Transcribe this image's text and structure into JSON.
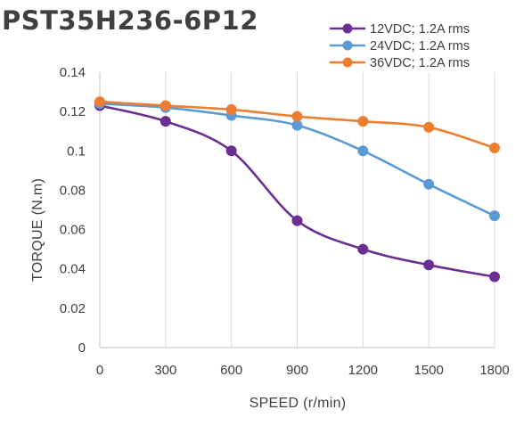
{
  "chart_data": {
    "type": "line",
    "title": "PST35H236-6P12",
    "xlabel": "SPEED (r/min)",
    "ylabel": "TORQUE (N.m)",
    "x": [
      0,
      300,
      600,
      900,
      1200,
      1500,
      1800
    ],
    "xlim": [
      0,
      1800
    ],
    "ylim": [
      0,
      0.14
    ],
    "xticks": [
      "0",
      "300",
      "600",
      "900",
      "1200",
      "1500",
      "1800"
    ],
    "yticks": [
      "0",
      "0.02",
      "0.04",
      "0.06",
      "0.08",
      "0.1",
      "0.12",
      "0.14"
    ],
    "grid": "vertical",
    "legend_position": "top-right",
    "series": [
      {
        "name": "12VDC; 1.2A rms",
        "color": "#6b2f93",
        "values": [
          0.123,
          0.115,
          0.1,
          0.0645,
          0.05,
          0.042,
          0.036
        ]
      },
      {
        "name": "24VDC; 1.2A rms",
        "color": "#5b9bd5",
        "values": [
          0.124,
          0.122,
          0.118,
          0.113,
          0.1,
          0.083,
          0.067
        ]
      },
      {
        "name": "36VDC; 1.2A rms",
        "color": "#ed7d31",
        "values": [
          0.125,
          0.123,
          0.121,
          0.1175,
          0.115,
          0.112,
          0.1015
        ]
      }
    ]
  }
}
